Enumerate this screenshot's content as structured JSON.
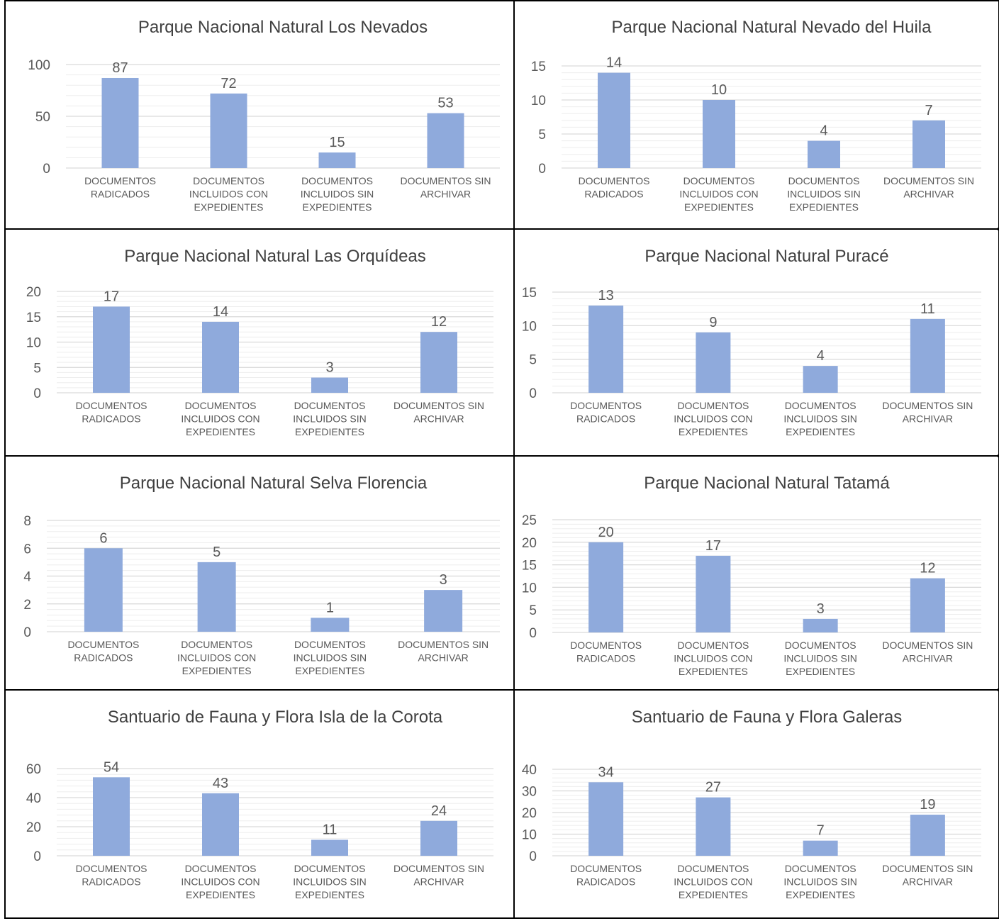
{
  "categories": [
    [
      "DOCUMENTOS",
      "RADICADOS"
    ],
    [
      "DOCUMENTOS",
      "INCLUIDOS CON",
      "EXPEDIENTES"
    ],
    [
      "DOCUMENTOS",
      "INCLUIDOS SIN",
      "EXPEDIENTES"
    ],
    [
      "DOCUMENTOS SIN",
      "ARCHIVAR"
    ]
  ],
  "colors": {
    "bar": "#8faadc",
    "axis_text": "#595959",
    "grid_major": "#d9d9d9",
    "grid_minor": "#ededed",
    "title": "#404040"
  },
  "chart_data": [
    {
      "type": "bar",
      "title": "Parque Nacional Natural Los Nevados",
      "categories": [
        "DOCUMENTOS RADICADOS",
        "DOCUMENTOS INCLUIDOS CON EXPEDIENTES",
        "DOCUMENTOS INCLUIDOS SIN EXPEDIENTES",
        "DOCUMENTOS SIN ARCHIVAR"
      ],
      "values": [
        87,
        72,
        15,
        53
      ],
      "ylim": [
        0,
        100
      ],
      "yticks": [
        0,
        50,
        100
      ],
      "minor_step": 10,
      "grid": true,
      "legend": "none"
    },
    {
      "type": "bar",
      "title": "Parque Nacional Natural Nevado del Huila",
      "categories": [
        "DOCUMENTOS RADICADOS",
        "DOCUMENTOS INCLUIDOS CON EXPEDIENTES",
        "DOCUMENTOS INCLUIDOS SIN EXPEDIENTES",
        "DOCUMENTOS SIN ARCHIVAR"
      ],
      "values": [
        14,
        10,
        4,
        7
      ],
      "ylim": [
        0,
        15
      ],
      "yticks": [
        0,
        5,
        10,
        15
      ],
      "minor_step": 1,
      "grid": true,
      "legend": "none"
    },
    {
      "type": "bar",
      "title": "Parque Nacional Natural Las Orquídeas",
      "categories": [
        "DOCUMENTOS RADICADOS",
        "DOCUMENTOS INCLUIDOS CON EXPEDIENTES",
        "DOCUMENTOS INCLUIDOS SIN EXPEDIENTES",
        "DOCUMENTOS SIN ARCHIVAR"
      ],
      "values": [
        17,
        14,
        3,
        12
      ],
      "ylim": [
        0,
        20
      ],
      "yticks": [
        0,
        5,
        10,
        15,
        20
      ],
      "minor_step": 1,
      "grid": true,
      "legend": "none"
    },
    {
      "type": "bar",
      "title": "Parque Nacional Natural Puracé",
      "categories": [
        "DOCUMENTOS RADICADOS",
        "DOCUMENTOS INCLUIDOS CON EXPEDIENTES",
        "DOCUMENTOS INCLUIDOS SIN EXPEDIENTES",
        "DOCUMENTOS SIN ARCHIVAR"
      ],
      "values": [
        13,
        9,
        4,
        11
      ],
      "ylim": [
        0,
        15
      ],
      "yticks": [
        0,
        5,
        10,
        15
      ],
      "minor_step": 1,
      "grid": true,
      "legend": "none"
    },
    {
      "type": "bar",
      "title": "Parque Nacional Natural Selva Florencia",
      "categories": [
        "DOCUMENTOS RADICADOS",
        "DOCUMENTOS INCLUIDOS CON EXPEDIENTES",
        "DOCUMENTOS INCLUIDOS SIN EXPEDIENTES",
        "DOCUMENTOS SIN ARCHIVAR"
      ],
      "values": [
        6,
        5,
        1,
        3
      ],
      "ylim": [
        0,
        8
      ],
      "yticks": [
        0,
        2,
        4,
        6,
        8
      ],
      "minor_step": 0.4,
      "grid": true,
      "legend": "none"
    },
    {
      "type": "bar",
      "title": "Parque Nacional Natural Tatamá",
      "categories": [
        "DOCUMENTOS RADICADOS",
        "DOCUMENTOS INCLUIDOS CON EXPEDIENTES",
        "DOCUMENTOS INCLUIDOS SIN EXPEDIENTES",
        "DOCUMENTOS SIN ARCHIVAR"
      ],
      "values": [
        20,
        17,
        3,
        12
      ],
      "ylim": [
        0,
        25
      ],
      "yticks": [
        0,
        5,
        10,
        15,
        20,
        25
      ],
      "minor_step": 1,
      "grid": true,
      "legend": "none"
    },
    {
      "type": "bar",
      "title": "Santuario de Fauna y Flora Isla de la Corota",
      "categories": [
        "DOCUMENTOS RADICADOS",
        "DOCUMENTOS INCLUIDOS CON EXPEDIENTES",
        "DOCUMENTOS INCLUIDOS SIN EXPEDIENTES",
        "DOCUMENTOS SIN ARCHIVAR"
      ],
      "values": [
        54,
        43,
        11,
        24
      ],
      "ylim": [
        0,
        60
      ],
      "yticks": [
        0,
        20,
        40,
        60
      ],
      "minor_step": 4,
      "grid": true,
      "legend": "none"
    },
    {
      "type": "bar",
      "title": "Santuario de Fauna y Flora Galeras",
      "categories": [
        "DOCUMENTOS RADICADOS",
        "DOCUMENTOS INCLUIDOS CON EXPEDIENTES",
        "DOCUMENTOS INCLUIDOS SIN EXPEDIENTES",
        "DOCUMENTOS SIN ARCHIVAR"
      ],
      "values": [
        34,
        27,
        7,
        19
      ],
      "ylim": [
        0,
        40
      ],
      "yticks": [
        0,
        10,
        20,
        30,
        40
      ],
      "minor_step": 2,
      "grid": true,
      "legend": "none"
    }
  ]
}
